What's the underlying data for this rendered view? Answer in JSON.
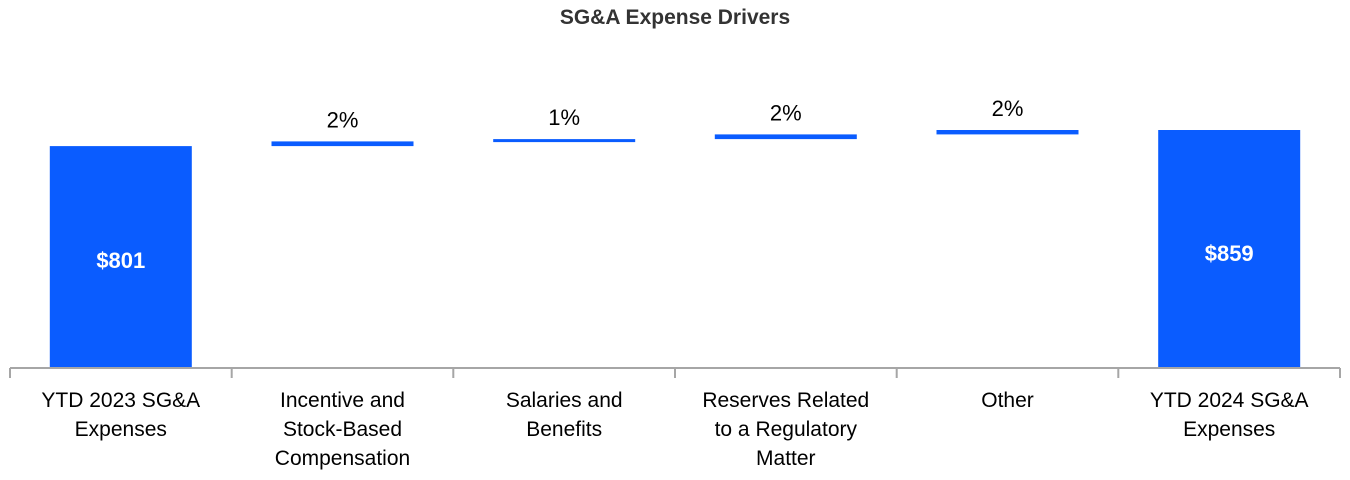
{
  "chart_data": {
    "type": "bar",
    "subtype": "waterfall",
    "title": "SG&A Expense Drivers",
    "xlabel": "",
    "ylabel": "",
    "grid": false,
    "legend": "none",
    "color": "#0a5cff",
    "axis_color": "#a6a6a6",
    "categories": [
      [
        "YTD 2023 SG&A",
        "Expenses"
      ],
      [
        "Incentive and",
        "Stock-Based",
        "Compensation"
      ],
      [
        "Salaries and",
        "Benefits"
      ],
      [
        "Reserves Related",
        "to a Regulatory",
        "Matter"
      ],
      [
        "Other"
      ],
      [
        "YTD 2024 SG&A",
        "Expenses"
      ]
    ],
    "bars": [
      {
        "kind": "total",
        "start": 0,
        "end": 801,
        "label": "$801"
      },
      {
        "kind": "change",
        "start": 801,
        "end": 818,
        "label": "2%"
      },
      {
        "kind": "change",
        "start": 818,
        "end": 826,
        "label": "1%"
      },
      {
        "kind": "change",
        "start": 826,
        "end": 843,
        "label": "2%"
      },
      {
        "kind": "change",
        "start": 843,
        "end": 859,
        "label": "2%"
      },
      {
        "kind": "total",
        "start": 0,
        "end": 859,
        "label": "$859"
      }
    ]
  }
}
